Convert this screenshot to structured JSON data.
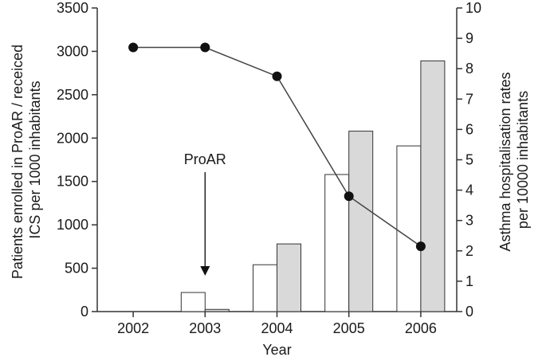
{
  "chart_data": {
    "type": "bar",
    "categories": [
      "2002",
      "2003",
      "2004",
      "2005",
      "2006"
    ],
    "xlabel": "Year",
    "ylabel_left": [
      "Patients enrolled in ProAR / receiced",
      "ICS per 1000 inhabitants"
    ],
    "ylabel_right": [
      "Asthma hospitalisation rates",
      "per 10000 inhabitants"
    ],
    "ylim_left": [
      0,
      3500
    ],
    "ylim_right": [
      0,
      10
    ],
    "yticks_left": [
      0,
      500,
      1000,
      1500,
      2000,
      2500,
      3000,
      3500
    ],
    "yticks_right": [
      0,
      1,
      2,
      3,
      4,
      5,
      6,
      7,
      8,
      9,
      10
    ],
    "grid": false,
    "series": [
      {
        "axis": "left",
        "kind": "bar",
        "fill": "#ffffff",
        "values": [
          0,
          220,
          540,
          1580,
          1910
        ]
      },
      {
        "axis": "left",
        "kind": "bar",
        "fill": "#d9d9d9",
        "values": [
          0,
          25,
          780,
          2080,
          2890
        ]
      },
      {
        "axis": "right",
        "kind": "line",
        "marker": "circle",
        "values": [
          8.7,
          8.7,
          7.75,
          3.8,
          2.15
        ]
      }
    ],
    "annotations": [
      {
        "text": "ProAR",
        "category": "2003",
        "arrow": "down"
      }
    ]
  }
}
